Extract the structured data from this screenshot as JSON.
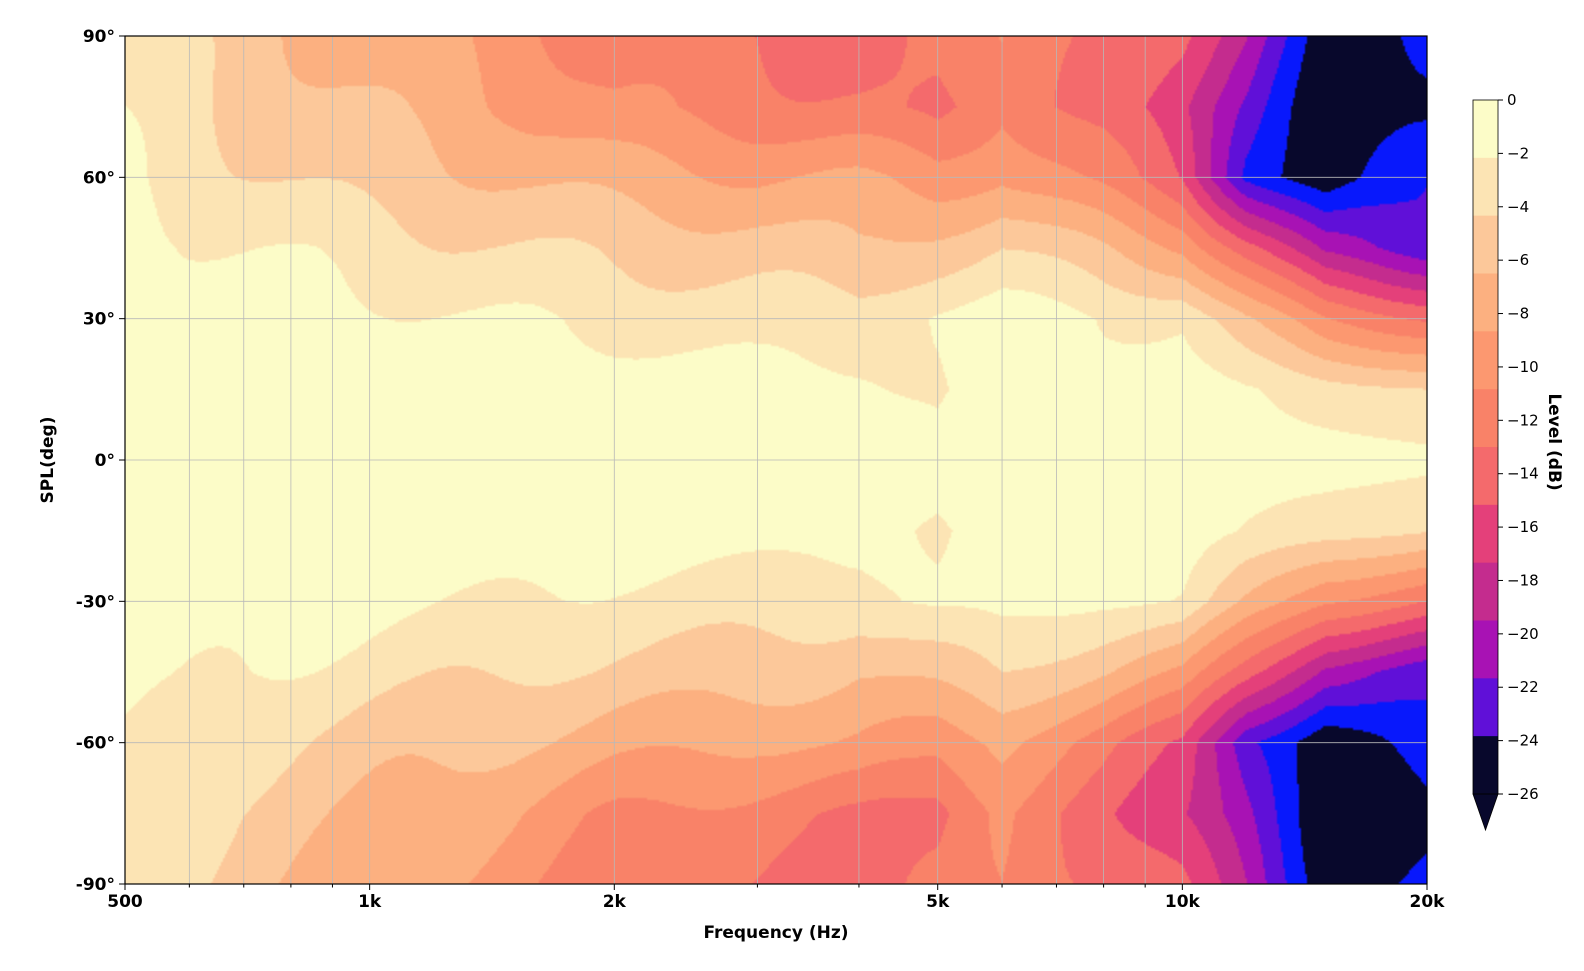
{
  "chart_data": {
    "type": "heatmap",
    "xlabel": "Frequency (Hz)",
    "ylabel": "SPL(deg)",
    "colorbar_label": "Level (dB)",
    "xscale": "log",
    "xlim": [
      500,
      20000
    ],
    "ylim": [
      -90,
      90
    ],
    "grid": true,
    "x_ticks": [
      {
        "value": 500,
        "label": "500"
      },
      {
        "value": 1000,
        "label": "1k"
      },
      {
        "value": 2000,
        "label": "2k"
      },
      {
        "value": 5000,
        "label": "5k"
      },
      {
        "value": 10000,
        "label": "10k"
      },
      {
        "value": 20000,
        "label": "20k"
      }
    ],
    "y_ticks": [
      {
        "value": 90,
        "label": "90°"
      },
      {
        "value": 60,
        "label": "60°"
      },
      {
        "value": 30,
        "label": "30°"
      },
      {
        "value": 0,
        "label": "0°"
      },
      {
        "value": -30,
        "label": "-30°"
      },
      {
        "value": -60,
        "label": "-60°"
      },
      {
        "value": -90,
        "label": "-90°"
      }
    ],
    "colorbar_ticks": [
      {
        "value": 0,
        "label": "0"
      },
      {
        "value": -2,
        "label": "−2"
      },
      {
        "value": -4,
        "label": "−4"
      },
      {
        "value": -6,
        "label": "−6"
      },
      {
        "value": -8,
        "label": "−8"
      },
      {
        "value": -10,
        "label": "−10"
      },
      {
        "value": -12,
        "label": "−12"
      },
      {
        "value": -14,
        "label": "−14"
      },
      {
        "value": -16,
        "label": "−16"
      },
      {
        "value": -18,
        "label": "−18"
      },
      {
        "value": -20,
        "label": "−20"
      },
      {
        "value": -22,
        "label": "−22"
      },
      {
        "value": -24,
        "label": "−24"
      },
      {
        "value": -26,
        "label": "−26"
      }
    ],
    "levels": [
      0,
      -2,
      -4,
      -6,
      -8,
      -10,
      -12,
      -14,
      -16,
      -18,
      -20,
      -22,
      -24,
      -26
    ],
    "colors": [
      "#fcfcc8",
      "#fce4b4",
      "#fcc89a",
      "#fcb080",
      "#fc9870",
      "#f98268",
      "#f46a6c",
      "#e4407a",
      "#c42c8e",
      "#a812b4",
      "#6010d8",
      "#0818fc",
      "#08082c"
    ],
    "angles_deg": [
      -90,
      -75,
      -60,
      -45,
      -30,
      -15,
      0,
      15,
      30,
      45,
      60,
      75,
      90
    ],
    "frequencies_hz": [
      500,
      700,
      1000,
      1500,
      2000,
      3000,
      4000,
      5000,
      6000,
      8000,
      10000,
      12000,
      15000,
      20000
    ],
    "attenuation_db_by_angle": [
      [
        -3,
        -5,
        -7,
        -9,
        -11,
        -12,
        -13,
        -12,
        -10,
        -12,
        -14,
        -18,
        -25,
        -24
      ],
      [
        -2.5,
        -4.5,
        -6,
        -8,
        -10,
        -11,
        -12,
        -13,
        -10,
        -13,
        -16,
        -20,
        -26,
        -25
      ],
      [
        -2,
        -3.5,
        -5,
        -6,
        -7,
        -8,
        -8,
        -9,
        -8,
        -11,
        -14,
        -22,
        -26,
        -22
      ],
      [
        -1,
        -2,
        -3,
        -4,
        -4.5,
        -5,
        -6,
        -5,
        -4,
        -6,
        -8,
        -13,
        -19,
        -21
      ],
      [
        -0.5,
        -1,
        -1.5,
        -2,
        -2.5,
        -3,
        -3,
        -1.5,
        -1,
        -2,
        -2,
        -6,
        -10,
        -12
      ],
      [
        0,
        -0.5,
        -0.5,
        -1,
        -1,
        -1.2,
        -1.5,
        -2.5,
        -0.5,
        -1,
        -1,
        -2,
        -3,
        -4
      ],
      [
        0,
        0,
        0,
        0,
        0,
        0,
        -0.5,
        -1,
        -0.5,
        -0.5,
        -0.5,
        -1,
        -1,
        -1.5
      ],
      [
        0,
        -0.5,
        -0.5,
        -1,
        -1,
        -1.2,
        -1.5,
        -2.5,
        -0.5,
        -1,
        -1,
        -2,
        -3,
        -4
      ],
      [
        -0.5,
        -1,
        -1.5,
        -2,
        -2.5,
        -3,
        -3,
        -1.5,
        -1,
        -2,
        -2,
        -6,
        -10,
        -12
      ],
      [
        -1,
        -2,
        -3,
        -4,
        -4.5,
        -5,
        -6,
        -5,
        -4,
        -6,
        -8,
        -13,
        -19,
        -21
      ],
      [
        -2,
        -3.5,
        -5,
        -6,
        -7,
        -8,
        -8,
        -9,
        -8,
        -11,
        -14,
        -22,
        -26,
        -22
      ],
      [
        -2.5,
        -4.5,
        -6,
        -8,
        -10,
        -11,
        -12,
        -13,
        -10,
        -13,
        -16,
        -20,
        -26,
        -25
      ],
      [
        -3,
        -5,
        -7,
        -9,
        -11,
        -12,
        -13,
        -12,
        -10,
        -12,
        -14,
        -18,
        -25,
        -24
      ]
    ]
  }
}
